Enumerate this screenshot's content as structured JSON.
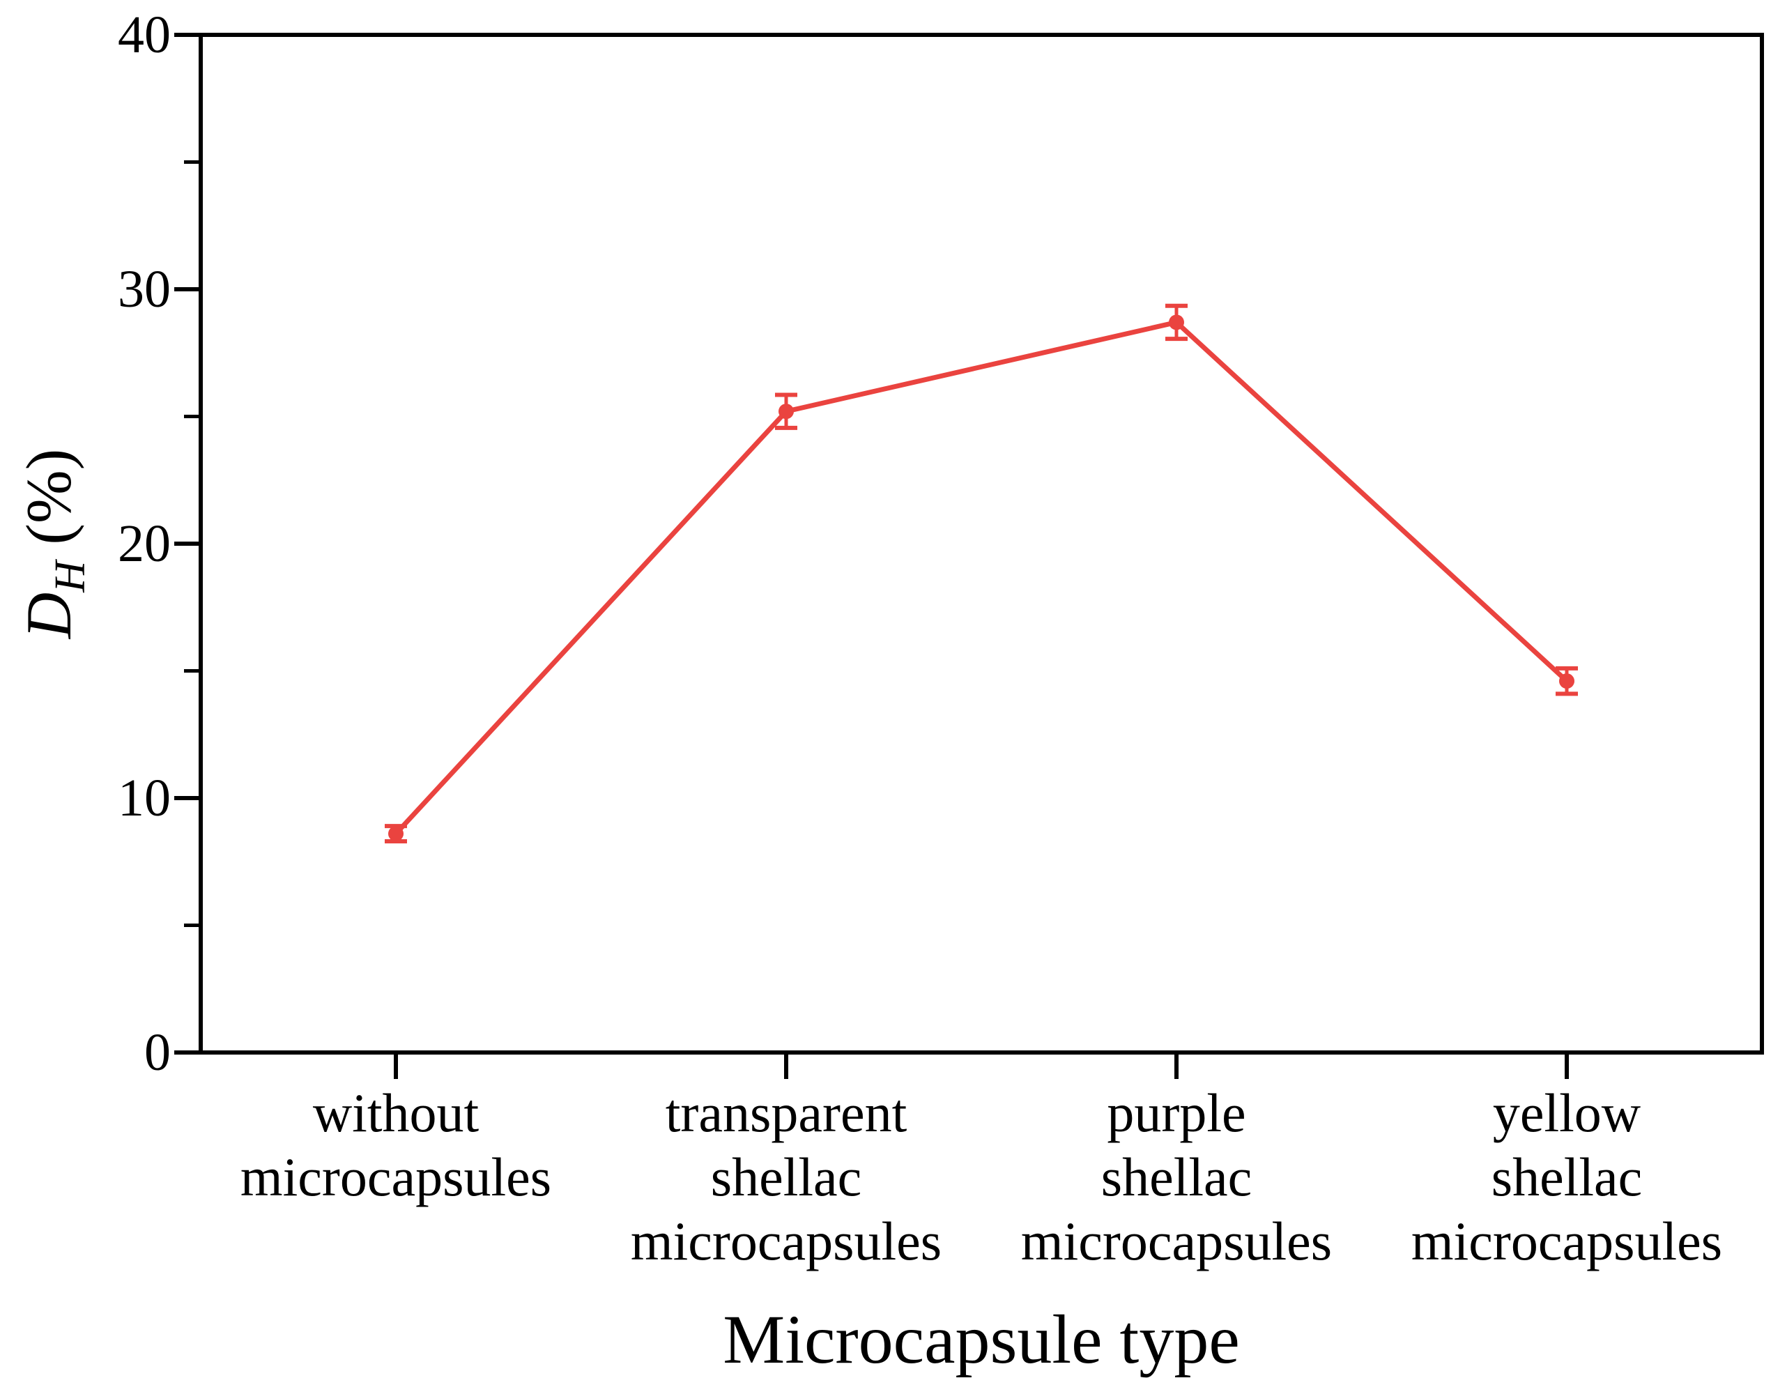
{
  "chart_data": {
    "type": "line",
    "title": "",
    "xlabel": "Microcapsule type",
    "ylabel": "D_H (%)",
    "ylabel_parts": {
      "symbol": "D",
      "subscript": "H",
      "unit": " (%)"
    },
    "categories": [
      "without\nmicrocapsules",
      "transparent\nshellac\nmicrocapsules",
      "purple\nshellac\nmicrocapsules",
      "yellow\nshellac\nmicrocapsules"
    ],
    "values": [
      8.6,
      25.2,
      28.7,
      14.6
    ],
    "errors": [
      0.3,
      0.65,
      0.65,
      0.5
    ],
    "ylim": [
      0,
      40
    ],
    "yticks": [
      0,
      10,
      20,
      30,
      40
    ],
    "ytick_labels": [
      "0",
      "10",
      "20",
      "30",
      "40"
    ],
    "minor_ytick_step": 5,
    "grid": false,
    "legend": "none",
    "marker": "circle",
    "error_caps": true,
    "series_color": "#ea433f",
    "axis_color": "#000000"
  }
}
